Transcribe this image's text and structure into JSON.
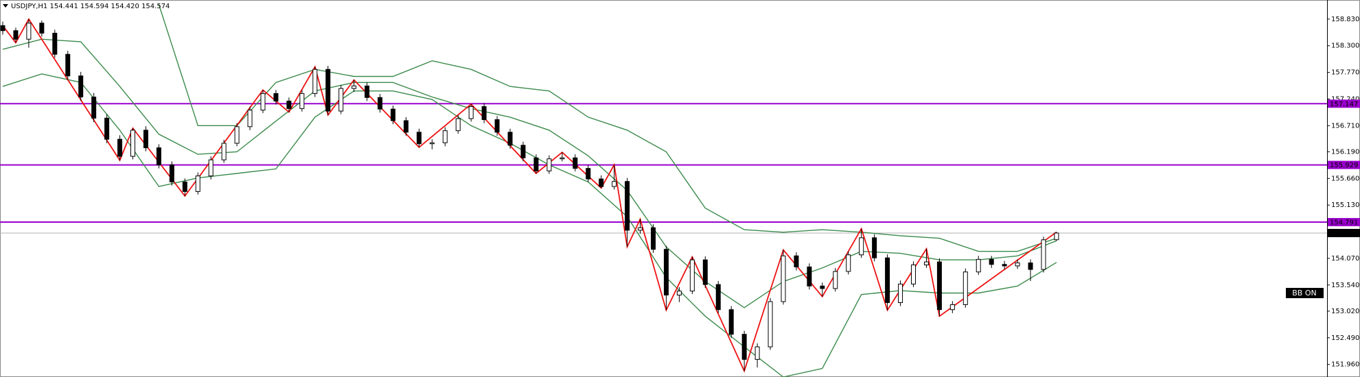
{
  "chart_data": {
    "type": "candlestick",
    "title": "USDJPY,H1  154.441 154.594 154.420 154.574",
    "ylim": [
      151.71,
      159.21
    ],
    "yticks": [
      {
        "value": 158.83,
        "label": "158.830"
      },
      {
        "value": 158.3,
        "label": "158.300"
      },
      {
        "value": 157.77,
        "label": "157.770"
      },
      {
        "value": 157.24,
        "label": "157.240"
      },
      {
        "value": 156.71,
        "label": "156.710"
      },
      {
        "value": 156.19,
        "label": "156.190"
      },
      {
        "value": 155.66,
        "label": "155.660"
      },
      {
        "value": 155.13,
        "label": "155.130"
      },
      {
        "value": 154.07,
        "label": "154.070"
      },
      {
        "value": 153.54,
        "label": "153.540"
      },
      {
        "value": 153.02,
        "label": "153.020"
      },
      {
        "value": 152.49,
        "label": "152.490"
      },
      {
        "value": 151.96,
        "label": "151.960"
      }
    ],
    "candles": {
      "open": [
        158.7,
        158.6,
        158.43,
        158.75,
        158.55,
        158.13,
        157.7,
        157.28,
        156.86,
        156.44,
        156.1,
        156.62,
        156.27,
        155.93,
        155.59,
        155.4,
        155.71,
        156.03,
        156.36,
        156.69,
        157.02,
        157.35,
        157.2,
        157.05,
        157.35,
        157.83,
        157.0,
        157.45,
        157.5,
        157.27,
        157.04,
        156.81,
        156.58,
        156.35,
        156.37,
        156.61,
        156.85,
        157.09,
        156.83,
        156.58,
        156.32,
        156.07,
        155.81,
        156.05,
        156.07,
        155.86,
        155.65,
        155.5,
        155.6,
        154.63,
        154.68,
        154.25,
        153.34,
        153.42,
        154.04,
        153.55,
        153.05,
        152.56,
        152.06,
        152.31,
        153.21,
        154.12,
        153.9,
        153.52,
        153.47,
        153.81,
        154.14,
        154.48,
        154.08,
        153.19,
        153.56,
        153.94,
        154.0,
        153.05,
        153.15,
        153.8,
        154.05,
        153.95,
        153.92,
        153.98,
        153.85,
        154.441
      ],
      "high": [
        158.78,
        158.66,
        158.83,
        158.8,
        158.62,
        158.2,
        157.78,
        157.36,
        156.94,
        156.52,
        156.66,
        156.7,
        156.34,
        156.0,
        155.66,
        155.78,
        156.1,
        156.43,
        156.76,
        157.09,
        157.42,
        157.42,
        157.27,
        157.42,
        157.88,
        157.9,
        157.52,
        157.62,
        157.57,
        157.34,
        157.11,
        156.88,
        156.65,
        156.44,
        156.68,
        156.92,
        157.14,
        157.16,
        156.9,
        156.65,
        156.39,
        156.14,
        156.12,
        156.18,
        156.14,
        155.93,
        155.72,
        155.93,
        155.67,
        154.85,
        154.75,
        154.32,
        153.5,
        154.1,
        154.11,
        153.62,
        153.12,
        152.63,
        152.38,
        153.28,
        154.24,
        154.19,
        153.97,
        153.59,
        153.88,
        154.21,
        154.66,
        154.55,
        154.15,
        153.63,
        154.01,
        154.26,
        154.07,
        153.22,
        153.87,
        154.12,
        154.12,
        154.02,
        154.05,
        154.05,
        154.5,
        154.594
      ],
      "low": [
        158.52,
        158.36,
        158.26,
        158.48,
        158.06,
        157.62,
        157.2,
        156.78,
        156.36,
        156.02,
        156.04,
        156.2,
        155.86,
        155.52,
        155.31,
        155.34,
        155.64,
        155.97,
        156.3,
        156.62,
        156.96,
        157.13,
        156.98,
        156.99,
        157.28,
        156.92,
        156.94,
        157.38,
        157.2,
        156.97,
        156.74,
        156.51,
        156.28,
        156.24,
        156.3,
        156.55,
        156.79,
        156.76,
        156.51,
        156.25,
        156.0,
        155.76,
        155.75,
        156.0,
        155.8,
        155.59,
        155.47,
        155.44,
        154.3,
        154.56,
        154.18,
        153.04,
        153.2,
        153.36,
        153.48,
        152.98,
        152.49,
        151.83,
        151.9,
        152.25,
        153.15,
        153.83,
        153.45,
        153.31,
        153.41,
        153.75,
        154.08,
        154.01,
        153.04,
        153.12,
        153.5,
        153.88,
        152.92,
        152.98,
        153.09,
        153.74,
        153.88,
        153.85,
        153.86,
        153.62,
        153.79,
        154.42
      ],
      "close": [
        158.6,
        158.43,
        158.75,
        158.55,
        158.13,
        157.7,
        157.28,
        156.86,
        156.44,
        156.1,
        156.62,
        156.27,
        155.93,
        155.59,
        155.4,
        155.71,
        156.03,
        156.36,
        156.69,
        157.02,
        157.35,
        157.2,
        157.05,
        157.35,
        157.83,
        157.0,
        157.45,
        157.5,
        157.27,
        157.04,
        156.81,
        156.58,
        156.35,
        156.37,
        156.61,
        156.85,
        157.09,
        156.83,
        156.58,
        156.32,
        156.07,
        155.81,
        156.05,
        156.07,
        155.86,
        155.65,
        155.5,
        155.6,
        154.63,
        154.68,
        154.25,
        153.34,
        153.42,
        154.04,
        153.55,
        153.05,
        152.56,
        152.06,
        152.31,
        153.21,
        154.12,
        153.9,
        153.52,
        153.47,
        153.81,
        154.14,
        154.48,
        154.08,
        153.19,
        153.56,
        153.94,
        154.0,
        153.05,
        153.15,
        153.8,
        154.05,
        153.95,
        153.92,
        153.98,
        153.85,
        154.44,
        154.574
      ]
    },
    "series": [
      {
        "color": "#3a8a4a",
        "x": [
          0,
          3,
          6,
          9,
          12,
          15,
          18,
          21,
          24,
          27,
          30,
          33,
          36,
          39,
          42,
          45,
          48,
          51,
          54,
          57,
          60,
          63,
          66,
          69,
          72,
          75,
          78,
          81
        ],
        "values": [
          null,
          null,
          null,
          null,
          159.12,
          156.71,
          156.71,
          157.57,
          157.83,
          157.69,
          157.69,
          158.0,
          157.83,
          157.49,
          157.4,
          156.88,
          156.62,
          156.19,
          155.07,
          154.64,
          154.59,
          154.64,
          154.59,
          154.52,
          154.47,
          154.21,
          154.21,
          154.47
        ]
      },
      {
        "color": "#3a8a4a",
        "x": [
          0,
          3,
          6,
          9,
          12,
          15,
          18,
          21,
          24,
          27,
          30,
          33,
          36,
          39,
          42,
          45,
          48,
          51,
          54,
          57,
          60,
          63,
          66,
          69,
          72,
          75,
          78,
          81
        ],
        "values": [
          158.23,
          158.43,
          158.38,
          157.49,
          156.54,
          156.14,
          156.19,
          156.8,
          157.4,
          157.57,
          157.57,
          157.28,
          157.05,
          156.88,
          156.62,
          156.11,
          155.42,
          154.3,
          153.61,
          153.09,
          153.61,
          153.88,
          154.21,
          154.17,
          154.04,
          154.04,
          154.12,
          154.42
        ]
      },
      {
        "color": "#3a8a4a",
        "x": [
          0,
          3,
          6,
          9,
          12,
          15,
          18,
          21,
          24,
          27,
          30,
          33,
          36,
          39,
          42,
          45,
          48,
          51,
          54,
          57,
          60,
          63,
          66,
          69,
          72,
          75,
          78,
          81
        ],
        "values": [
          157.49,
          157.74,
          157.57,
          156.62,
          155.5,
          155.67,
          155.76,
          155.85,
          156.88,
          157.4,
          157.4,
          157.23,
          156.71,
          156.36,
          155.93,
          155.59,
          154.9,
          153.69,
          152.92,
          152.31,
          151.71,
          151.88,
          153.35,
          153.43,
          153.38,
          153.38,
          153.52,
          153.99
        ]
      },
      {
        "color": "#ee1111",
        "x": [
          0,
          1,
          2,
          9,
          10,
          14,
          20,
          22,
          24,
          25,
          27,
          32,
          36,
          41,
          43,
          46,
          47,
          48,
          49,
          51,
          53,
          57,
          60,
          63,
          66,
          68,
          71,
          72,
          81
        ],
        "values": [
          158.7,
          158.36,
          158.83,
          156.02,
          156.66,
          155.31,
          157.42,
          156.98,
          157.88,
          156.92,
          157.62,
          156.28,
          157.14,
          155.76,
          156.18,
          155.47,
          155.93,
          154.3,
          154.85,
          153.04,
          154.1,
          151.83,
          154.24,
          153.31,
          154.66,
          153.04,
          154.26,
          152.92,
          154.594
        ]
      }
    ],
    "levels": [
      157.147,
      155.929,
      154.791
    ],
    "level_color": "#9900cc",
    "current_price": 154.574,
    "annotation": "BB ON"
  }
}
